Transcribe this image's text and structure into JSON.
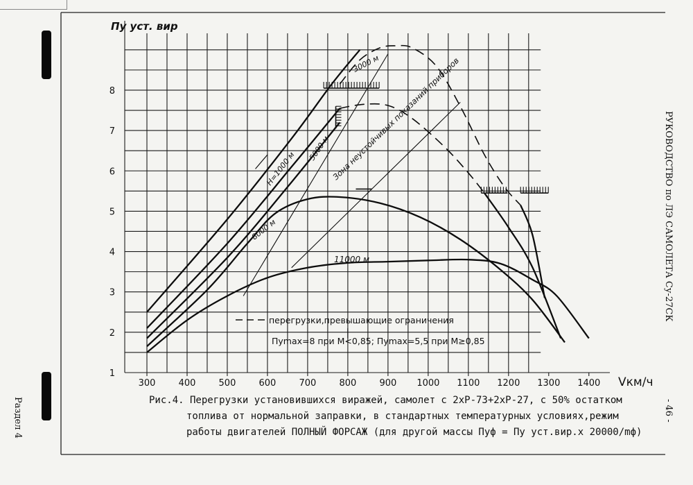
{
  "chart_data": {
    "type": "line",
    "ylabel": "Пу уст. вир",
    "xlabel": "Vкм/ч",
    "xlim": [
      280,
      1440
    ],
    "ylim": [
      1,
      9.1
    ],
    "x_ticks": [
      300,
      400,
      500,
      600,
      700,
      800,
      900,
      1000,
      1100,
      1200,
      1300,
      1400
    ],
    "y_ticks": [
      1,
      2,
      3,
      4,
      5,
      6,
      7,
      8
    ],
    "grid": true,
    "series": [
      {
        "name": "H=1000 м",
        "style": "solid",
        "points": [
          [
            300,
            2.5
          ],
          [
            500,
            4.8
          ],
          [
            660,
            6.8
          ],
          [
            760,
            8.15
          ],
          [
            830,
            9.0
          ]
        ]
      },
      {
        "name": "5000 м",
        "style": "solid",
        "points": [
          [
            300,
            2.1
          ],
          [
            500,
            4.2
          ],
          [
            660,
            6.1
          ],
          [
            780,
            7.55
          ]
        ]
      },
      {
        "name": "",
        "style": "solid",
        "points": [
          [
            300,
            1.85
          ],
          [
            500,
            3.85
          ],
          [
            650,
            5.6
          ],
          [
            780,
            7.2
          ]
        ]
      },
      {
        "name": "8000 м",
        "style": "solid",
        "points": [
          [
            300,
            1.65
          ],
          [
            450,
            3.05
          ],
          [
            550,
            4.2
          ],
          [
            620,
            4.95
          ],
          [
            700,
            5.3
          ],
          [
            780,
            5.35
          ],
          [
            880,
            5.2
          ],
          [
            980,
            4.85
          ],
          [
            1080,
            4.3
          ],
          [
            1180,
            3.55
          ],
          [
            1260,
            2.8
          ],
          [
            1340,
            1.75
          ]
        ]
      },
      {
        "name": "11000 м",
        "style": "solid",
        "points": [
          [
            300,
            1.5
          ],
          [
            400,
            2.3
          ],
          [
            500,
            2.9
          ],
          [
            600,
            3.35
          ],
          [
            700,
            3.6
          ],
          [
            800,
            3.72
          ],
          [
            900,
            3.75
          ],
          [
            1000,
            3.78
          ],
          [
            1100,
            3.8
          ],
          [
            1180,
            3.7
          ],
          [
            1260,
            3.3
          ],
          [
            1320,
            2.9
          ],
          [
            1400,
            1.85
          ]
        ]
      },
      {
        "name": "3000 м",
        "style": "dashed",
        "points": [
          [
            780,
            8.15
          ],
          [
            830,
            8.75
          ],
          [
            880,
            9.05
          ],
          [
            920,
            9.1
          ],
          [
            960,
            9.05
          ],
          [
            1020,
            8.6
          ],
          [
            1080,
            7.6
          ],
          [
            1140,
            6.4
          ],
          [
            1190,
            5.6
          ],
          [
            1230,
            5.15
          ]
        ]
      },
      {
        "name": "",
        "style": "dashed",
        "points": [
          [
            780,
            7.55
          ],
          [
            840,
            7.65
          ],
          [
            900,
            7.62
          ],
          [
            960,
            7.3
          ],
          [
            1040,
            6.6
          ],
          [
            1100,
            5.95
          ],
          [
            1140,
            5.45
          ]
        ]
      },
      {
        "name": "",
        "style": "solid",
        "points": [
          [
            1140,
            5.45
          ],
          [
            1200,
            4.6
          ],
          [
            1260,
            3.6
          ],
          [
            1330,
            1.85
          ]
        ]
      },
      {
        "name": "",
        "style": "solid",
        "points": [
          [
            1230,
            5.15
          ],
          [
            1260,
            4.4
          ],
          [
            1290,
            2.85
          ]
        ]
      }
    ],
    "annotations": [
      "Зона неустойчивых показаний приборов",
      "перегрузки,превышающие ограничения",
      "Пуmax=8 при М<0,85; Пуmax=5,5 при М≥0,85"
    ]
  },
  "caption": {
    "line1": "Рис.4. Перегрузки установившихся виражей, самолет с 2хР-73+2хР-27, с 50% остатком",
    "line2": "топлива от нормальной заправки, в стандартных температурных условиях,режим",
    "line3": "работы двигателей ПОЛНЫЙ ФОРСАЖ (для другой массы  Пуф = Пу уст.вир.х 20000/mф)"
  },
  "side": {
    "right_title": "РУКОВОДСТВО по ЛЭ САМОЛЕТА Су-27СК",
    "page_number": "- 46 -",
    "left_section": "Раздел 4"
  }
}
